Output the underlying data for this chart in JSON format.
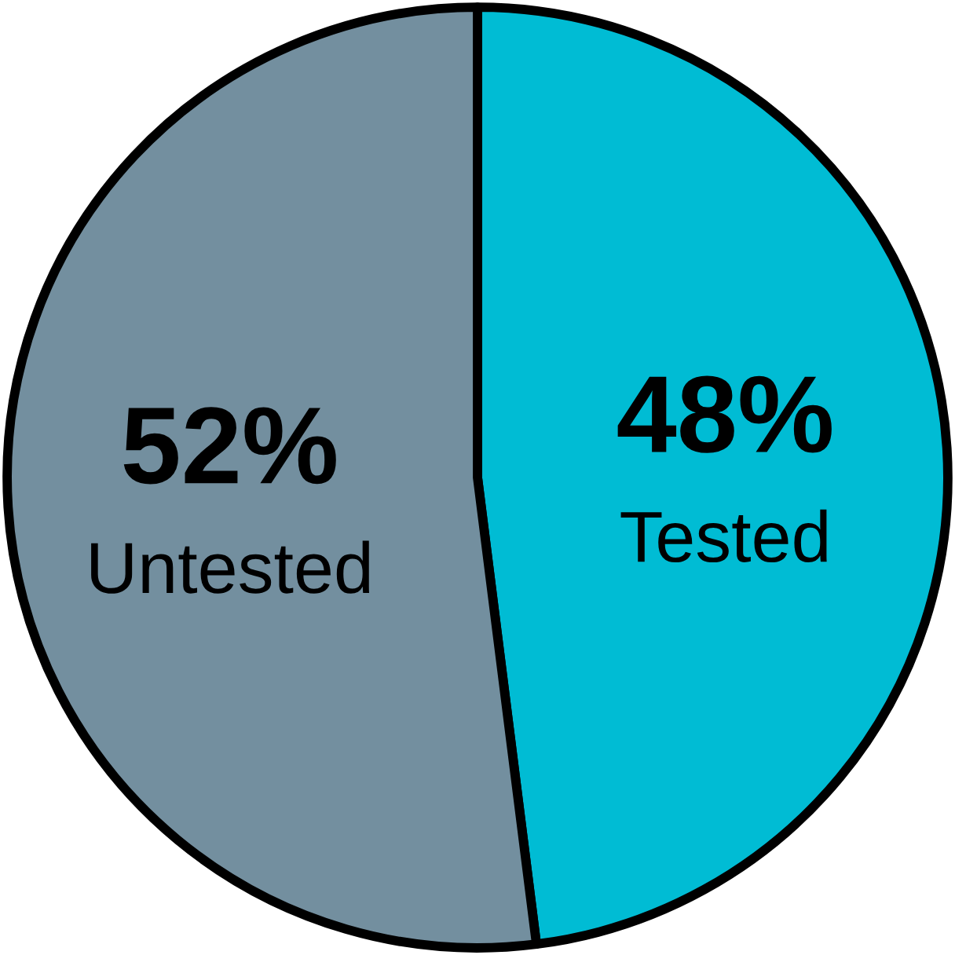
{
  "chart_data": {
    "type": "pie",
    "categories": [
      "Tested",
      "Untested"
    ],
    "values": [
      48,
      52
    ],
    "value_labels": [
      "48%",
      "52%"
    ],
    "colors": [
      "#00bcd4",
      "#738f9f"
    ],
    "legend": false
  }
}
